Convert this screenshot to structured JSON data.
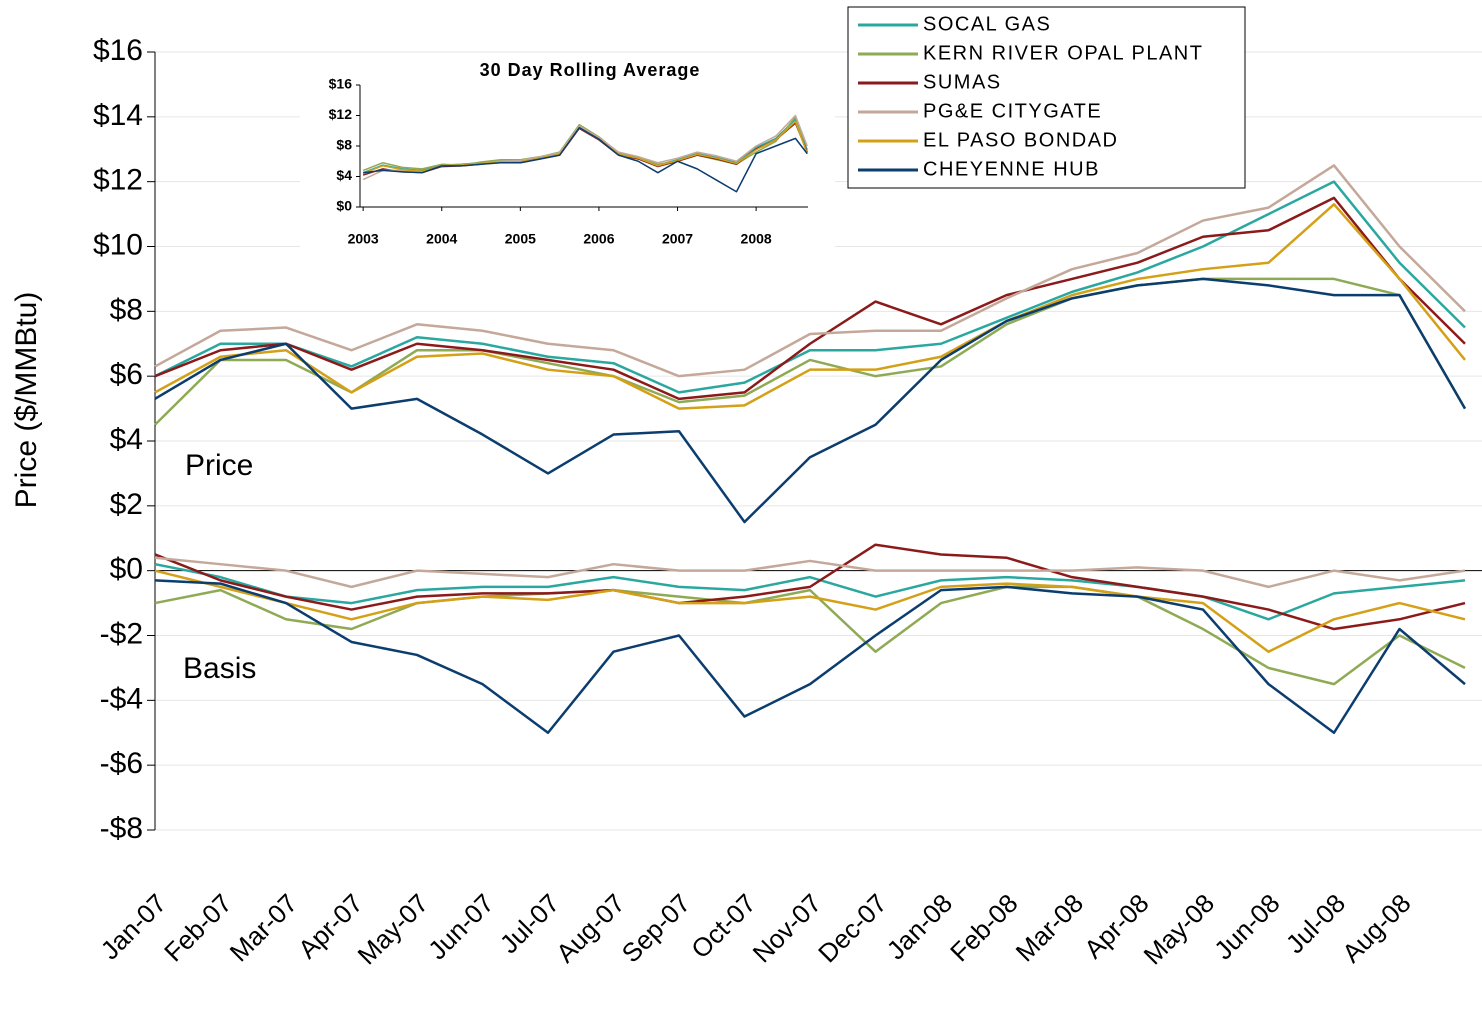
{
  "chart_data": [
    {
      "type": "line",
      "y_label": "Price ($/MMBtu)",
      "annotations": [
        "Price",
        "Basis"
      ],
      "categories": [
        "Jan-07",
        "Feb-07",
        "Mar-07",
        "Apr-07",
        "May-07",
        "Jun-07",
        "Jul-07",
        "Aug-07",
        "Sep-07",
        "Oct-07",
        "Nov-07",
        "Dec-07",
        "Jan-08",
        "Feb-08",
        "Mar-08",
        "Apr-08",
        "May-08",
        "Jun-08",
        "Jul-08",
        "Aug-08",
        null
      ],
      "ylim": [
        -8,
        16
      ],
      "yticks": [
        {
          "value": -8,
          "label": "-$8"
        },
        {
          "value": -6,
          "label": "-$6"
        },
        {
          "value": -4,
          "label": "-$4"
        },
        {
          "value": -2,
          "label": "-$2"
        },
        {
          "value": 0,
          "label": "$0"
        },
        {
          "value": 2,
          "label": "$2"
        },
        {
          "value": 4,
          "label": "$4"
        },
        {
          "value": 6,
          "label": "$6"
        },
        {
          "value": 8,
          "label": "$8"
        },
        {
          "value": 10,
          "label": "$10"
        },
        {
          "value": 12,
          "label": "$12"
        },
        {
          "value": 14,
          "label": "$14"
        },
        {
          "value": 16,
          "label": "$16"
        }
      ],
      "grid": true,
      "legend": "top-right",
      "series": [
        {
          "name": "SOCAL GAS",
          "color": "#2aa8a0",
          "values": [
            6.0,
            7.0,
            7.0,
            6.3,
            7.2,
            7.0,
            6.6,
            6.4,
            5.5,
            5.8,
            6.8,
            6.8,
            7.0,
            7.8,
            8.6,
            9.2,
            10.0,
            11.0,
            12.0,
            9.5,
            7.5
          ],
          "basis_values": [
            0.2,
            -0.2,
            -0.8,
            -1.0,
            -0.6,
            -0.5,
            -0.5,
            -0.2,
            -0.5,
            -0.6,
            -0.2,
            -0.8,
            -0.3,
            -0.2,
            -0.3,
            -0.5,
            -0.8,
            -1.5,
            -0.7,
            -0.5,
            -0.3
          ]
        },
        {
          "name": "KERN RIVER OPAL PLANT",
          "color": "#8faa55",
          "values": [
            4.5,
            6.5,
            6.5,
            5.5,
            6.8,
            6.8,
            6.4,
            6.0,
            5.2,
            5.4,
            6.5,
            6.0,
            6.3,
            7.6,
            8.4,
            8.8,
            9.0,
            9.0,
            9.0,
            8.5,
            5.0
          ],
          "basis_values": [
            -1.0,
            -0.6,
            -1.5,
            -1.8,
            -1.0,
            -0.8,
            -0.7,
            -0.6,
            -0.8,
            -1.0,
            -0.6,
            -2.5,
            -1.0,
            -0.5,
            -0.5,
            -0.8,
            -1.8,
            -3.0,
            -3.5,
            -2.0,
            -3.0
          ]
        },
        {
          "name": "SUMAS",
          "color": "#8b1a1a",
          "values": [
            6.0,
            6.8,
            7.0,
            6.2,
            7.0,
            6.8,
            6.5,
            6.2,
            5.3,
            5.5,
            7.0,
            8.3,
            7.6,
            8.5,
            9.0,
            9.5,
            10.3,
            10.5,
            11.5,
            9.0,
            7.0
          ],
          "basis_values": [
            0.5,
            -0.3,
            -0.8,
            -1.2,
            -0.8,
            -0.7,
            -0.7,
            -0.6,
            -1.0,
            -0.8,
            -0.5,
            0.8,
            0.5,
            0.4,
            -0.2,
            -0.5,
            -0.8,
            -1.2,
            -1.8,
            -1.5,
            -1.0
          ]
        },
        {
          "name": "PG&E CITYGATE",
          "color": "#c4a89a",
          "values": [
            6.3,
            7.4,
            7.5,
            6.8,
            7.6,
            7.4,
            7.0,
            6.8,
            6.0,
            6.2,
            7.3,
            7.4,
            7.4,
            8.4,
            9.3,
            9.8,
            10.8,
            11.2,
            12.5,
            10.0,
            8.0
          ],
          "basis_values": [
            0.4,
            0.2,
            0.0,
            -0.5,
            0.0,
            -0.1,
            -0.2,
            0.2,
            0.0,
            0.0,
            0.3,
            0.0,
            0.0,
            0.0,
            0.0,
            0.1,
            0.0,
            -0.5,
            0.0,
            -0.3,
            0.0
          ]
        },
        {
          "name": "EL PASO BONDAD",
          "color": "#d4a017",
          "values": [
            5.5,
            6.6,
            6.8,
            5.5,
            6.6,
            6.7,
            6.2,
            6.0,
            5.0,
            5.1,
            6.2,
            6.2,
            6.6,
            7.7,
            8.5,
            9.0,
            9.3,
            9.5,
            11.3,
            9.0,
            6.5
          ],
          "basis_values": [
            0.0,
            -0.5,
            -1.0,
            -1.5,
            -1.0,
            -0.8,
            -0.9,
            -0.6,
            -1.0,
            -1.0,
            -0.8,
            -1.2,
            -0.5,
            -0.4,
            -0.5,
            -0.8,
            -1.0,
            -2.5,
            -1.5,
            -1.0,
            -1.5
          ]
        },
        {
          "name": "CHEYENNE HUB",
          "color": "#0b3d6e",
          "values": [
            5.3,
            6.5,
            7.0,
            5.0,
            5.3,
            4.2,
            3.0,
            4.2,
            4.3,
            1.5,
            3.5,
            4.5,
            6.5,
            7.7,
            8.4,
            8.8,
            9.0,
            8.8,
            8.5,
            8.5,
            5.0
          ],
          "basis_values": [
            -0.3,
            -0.4,
            -1.0,
            -2.2,
            -2.6,
            -3.5,
            -5.0,
            -2.5,
            -2.0,
            -4.5,
            -3.5,
            -2.0,
            -0.6,
            -0.5,
            -0.7,
            -0.8,
            -1.2,
            -3.5,
            -5.0,
            -1.8,
            -3.5
          ]
        }
      ]
    },
    {
      "type": "line",
      "title": "30 Day Rolling Average",
      "x": [
        2003,
        2003.25,
        2003.5,
        2003.75,
        2004,
        2004.25,
        2004.5,
        2004.75,
        2005,
        2005.25,
        2005.5,
        2005.75,
        2006,
        2006.25,
        2006.5,
        2006.75,
        2007,
        2007.25,
        2007.5,
        2007.75,
        2008,
        2008.25,
        2008.5,
        2008.65
      ],
      "xlim": [
        2002.96,
        2008.66
      ],
      "xticks": [
        2003,
        2004,
        2005,
        2006,
        2007,
        2008
      ],
      "ylim": [
        0,
        16
      ],
      "yticks": [
        {
          "value": 0,
          "label": "$0"
        },
        {
          "value": 4,
          "label": "$4"
        },
        {
          "value": 8,
          "label": "$8"
        },
        {
          "value": 12,
          "label": "$12"
        },
        {
          "value": 16,
          "label": "$16"
        }
      ],
      "series": [
        {
          "color": "#2aa8a0",
          "values": [
            4.5,
            5.5,
            5.0,
            4.8,
            5.5,
            5.6,
            5.8,
            6.0,
            6.0,
            6.5,
            7.0,
            10.5,
            9.0,
            7.0,
            6.5,
            5.5,
            6.2,
            7.0,
            6.5,
            5.8,
            7.8,
            9.0,
            11.5,
            7.5
          ]
        },
        {
          "color": "#8faa55",
          "values": [
            4.8,
            5.8,
            5.2,
            5.0,
            5.6,
            5.5,
            5.9,
            6.2,
            6.2,
            6.6,
            7.2,
            10.8,
            9.2,
            7.1,
            6.6,
            5.6,
            6.0,
            6.8,
            6.2,
            5.6,
            7.2,
            8.6,
            11.8,
            7.0
          ]
        },
        {
          "color": "#8b1a1a",
          "values": [
            4.2,
            5.0,
            4.6,
            4.5,
            5.3,
            5.4,
            5.6,
            5.9,
            5.8,
            6.3,
            6.8,
            10.3,
            8.8,
            6.8,
            6.3,
            5.3,
            6.0,
            6.8,
            6.3,
            5.6,
            7.6,
            8.8,
            11.0,
            7.2
          ]
        },
        {
          "color": "#c4a89a",
          "values": [
            3.6,
            4.8,
            4.8,
            4.6,
            5.4,
            5.5,
            5.7,
            6.0,
            6.1,
            6.6,
            7.1,
            10.6,
            9.1,
            7.2,
            6.6,
            5.8,
            6.4,
            7.2,
            6.7,
            6.0,
            8.0,
            9.3,
            12.0,
            8.0
          ]
        },
        {
          "color": "#d4a017",
          "values": [
            4.4,
            5.4,
            4.9,
            4.7,
            5.4,
            5.5,
            5.7,
            5.9,
            5.9,
            6.4,
            6.9,
            10.4,
            8.9,
            6.9,
            6.4,
            5.4,
            6.1,
            6.9,
            6.4,
            5.7,
            7.5,
            8.8,
            11.2,
            7.0
          ]
        },
        {
          "color": "#0b3d6e",
          "values": [
            4.5,
            4.8,
            4.6,
            4.5,
            5.4,
            5.4,
            5.6,
            5.8,
            5.8,
            6.3,
            6.8,
            10.4,
            8.9,
            6.8,
            6.0,
            4.5,
            6.0,
            5.0,
            3.5,
            2.0,
            7.0,
            8.0,
            9.0,
            7.0
          ]
        }
      ]
    }
  ]
}
